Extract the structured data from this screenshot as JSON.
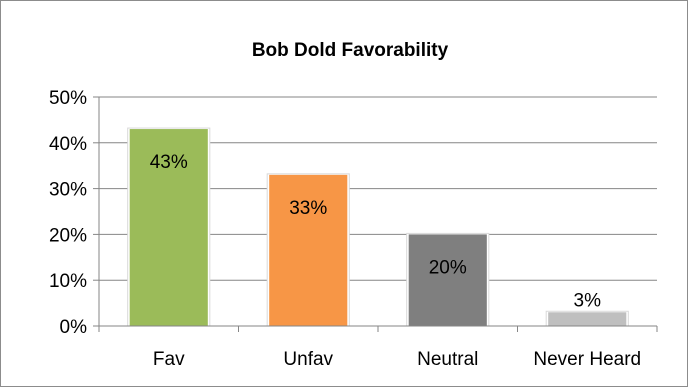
{
  "chart_data": {
    "type": "bar",
    "title": "Bob Dold Favorability",
    "categories": [
      "Fav",
      "Unfav",
      "Neutral",
      "Never Heard"
    ],
    "values": [
      43,
      33,
      20,
      3
    ],
    "value_labels": [
      "43%",
      "33%",
      "20%",
      "3%"
    ],
    "colors": [
      "#9bbb59",
      "#f79646",
      "#7f7f7f",
      "#bfbfbf"
    ],
    "ylim": [
      0,
      50
    ],
    "yticks": [
      0,
      10,
      20,
      30,
      40,
      50
    ],
    "ytick_labels": [
      "0%",
      "10%",
      "20%",
      "30%",
      "40%",
      "50%"
    ],
    "grid": true,
    "legend": "none"
  }
}
